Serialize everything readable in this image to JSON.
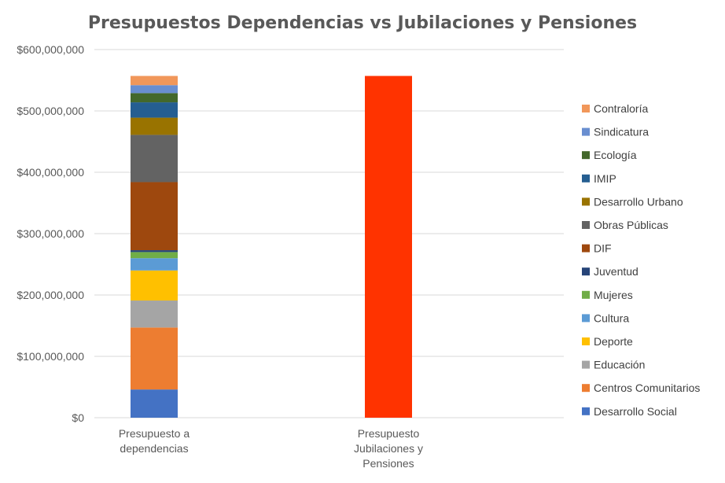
{
  "chart_data": {
    "type": "bar",
    "stacked": true,
    "title": "Presupuestos Dependencias vs Jubilaciones y Pensiones",
    "xlabel": "",
    "ylabel": "",
    "ylim": [
      0,
      600000000
    ],
    "y_ticks": [
      {
        "value": 0,
        "label": "$0"
      },
      {
        "value": 100000000,
        "label": "$100,000,000"
      },
      {
        "value": 200000000,
        "label": "$200,000,000"
      },
      {
        "value": 300000000,
        "label": "$300,000,000"
      },
      {
        "value": 400000000,
        "label": "$400,000,000"
      },
      {
        "value": 500000000,
        "label": "$500,000,000"
      },
      {
        "value": 600000000,
        "label": "$600,000,000"
      }
    ],
    "categories": [
      [
        "Presupuesto a",
        "dependencias"
      ],
      [
        "Presupuesto",
        "Jubilaciones y",
        "Pensiones"
      ]
    ],
    "grid": true,
    "legend_position": "right",
    "series": [
      {
        "name": "Desarrollo Social",
        "color": "#4472C4",
        "values": [
          46000000,
          0
        ]
      },
      {
        "name": "Centros Comunitarios",
        "color": "#ED7D31",
        "values": [
          101000000,
          0
        ]
      },
      {
        "name": "Educación",
        "color": "#A5A5A5",
        "values": [
          44000000,
          0
        ]
      },
      {
        "name": "Deporte",
        "color": "#FFC000",
        "values": [
          49000000,
          0
        ]
      },
      {
        "name": "Cultura",
        "color": "#5B9BD5",
        "values": [
          20000000,
          0
        ]
      },
      {
        "name": "Mujeres",
        "color": "#70AD47",
        "values": [
          10000000,
          0
        ]
      },
      {
        "name": "Juventud",
        "color": "#264478",
        "values": [
          3000000,
          0
        ]
      },
      {
        "name": "DIF",
        "color": "#9E480E",
        "values": [
          111000000,
          0
        ]
      },
      {
        "name": "Obras Públicas",
        "color": "#636363",
        "values": [
          77000000,
          0
        ]
      },
      {
        "name": "Desarrollo Urbano",
        "color": "#997300",
        "values": [
          28000000,
          0
        ]
      },
      {
        "name": "IMIP",
        "color": "#255E91",
        "values": [
          25000000,
          0
        ]
      },
      {
        "name": "Ecología",
        "color": "#43682B",
        "values": [
          15000000,
          0
        ]
      },
      {
        "name": "Sindicatura",
        "color": "#698ED0",
        "values": [
          13000000,
          0
        ]
      },
      {
        "name": "Contraloría",
        "color": "#F1975A",
        "values": [
          15000000,
          0
        ]
      },
      {
        "name": "",
        "color": "#FF3300",
        "values": [
          0,
          557000000
        ]
      }
    ]
  }
}
